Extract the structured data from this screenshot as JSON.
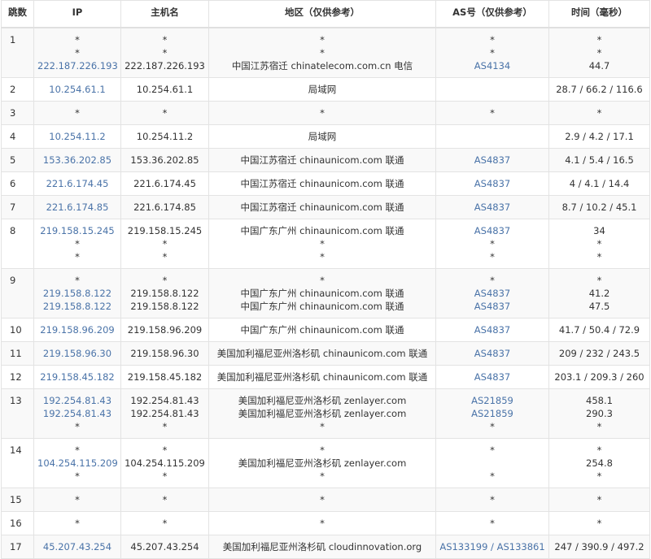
{
  "colors": {
    "link": "#4a73a8",
    "text": "#333333",
    "stripe": "#f9f9f9"
  },
  "headers": [
    "跳数",
    "IP",
    "主机名",
    "地区（仅供参考）",
    "AS号（仅供参考）",
    "时间（毫秒）"
  ],
  "rows": [
    {
      "hop": "1",
      "ip": [
        "*",
        "*",
        "222.187.226.193"
      ],
      "host": [
        "*",
        "*",
        "222.187.226.193"
      ],
      "region": [
        "*",
        "*",
        "中国江苏宿迁 chinatelecom.com.cn 电信"
      ],
      "as": [
        "*",
        "*",
        "AS4134"
      ],
      "time": [
        "*",
        "*",
        "44.7"
      ]
    },
    {
      "hop": "2",
      "ip": [
        "10.254.61.1"
      ],
      "host": [
        "10.254.61.1"
      ],
      "region": [
        "局域网"
      ],
      "as": [
        ""
      ],
      "time": [
        "28.7 / 66.2 / 116.6"
      ]
    },
    {
      "hop": "3",
      "ip": [
        "*"
      ],
      "host": [
        "*"
      ],
      "region": [
        "*"
      ],
      "as": [
        "*"
      ],
      "time": [
        "*"
      ]
    },
    {
      "hop": "4",
      "ip": [
        "10.254.11.2"
      ],
      "host": [
        "10.254.11.2"
      ],
      "region": [
        "局域网"
      ],
      "as": [
        ""
      ],
      "time": [
        "2.9 / 4.2 / 17.1"
      ]
    },
    {
      "hop": "5",
      "ip": [
        "153.36.202.85"
      ],
      "host": [
        "153.36.202.85"
      ],
      "region": [
        "中国江苏宿迁 chinaunicom.com 联通"
      ],
      "as": [
        "AS4837"
      ],
      "time": [
        "4.1 / 5.4 / 16.5"
      ]
    },
    {
      "hop": "6",
      "ip": [
        "221.6.174.45"
      ],
      "host": [
        "221.6.174.45"
      ],
      "region": [
        "中国江苏宿迁 chinaunicom.com 联通"
      ],
      "as": [
        "AS4837"
      ],
      "time": [
        "4 / 4.1 / 14.4"
      ]
    },
    {
      "hop": "7",
      "ip": [
        "221.6.174.85"
      ],
      "host": [
        "221.6.174.85"
      ],
      "region": [
        "中国江苏宿迁 chinaunicom.com 联通"
      ],
      "as": [
        "AS4837"
      ],
      "time": [
        "8.7 / 10.2 / 45.1"
      ]
    },
    {
      "hop": "8",
      "ip": [
        "219.158.15.245",
        "*",
        "*"
      ],
      "host": [
        "219.158.15.245",
        "*",
        "*"
      ],
      "region": [
        "中国广东广州 chinaunicom.com 联通",
        "*",
        "*"
      ],
      "as": [
        "AS4837",
        "*",
        "*"
      ],
      "time": [
        "34",
        "*",
        "*"
      ]
    },
    {
      "hop": "9",
      "ip": [
        "*",
        "219.158.8.122",
        "219.158.8.122"
      ],
      "host": [
        "*",
        "219.158.8.122",
        "219.158.8.122"
      ],
      "region": [
        "*",
        "中国广东广州 chinaunicom.com 联通",
        "中国广东广州 chinaunicom.com 联通"
      ],
      "as": [
        "*",
        "AS4837",
        "AS4837"
      ],
      "time": [
        "*",
        "41.2",
        "47.5"
      ]
    },
    {
      "hop": "10",
      "ip": [
        "219.158.96.209"
      ],
      "host": [
        "219.158.96.209"
      ],
      "region": [
        "中国广东广州 chinaunicom.com 联通"
      ],
      "as": [
        "AS4837"
      ],
      "time": [
        "41.7 / 50.4 / 72.9"
      ]
    },
    {
      "hop": "11",
      "ip": [
        "219.158.96.30"
      ],
      "host": [
        "219.158.96.30"
      ],
      "region": [
        "美国加利福尼亚州洛杉矶 chinaunicom.com 联通"
      ],
      "as": [
        "AS4837"
      ],
      "time": [
        "209 / 232 / 243.5"
      ]
    },
    {
      "hop": "12",
      "ip": [
        "219.158.45.182"
      ],
      "host": [
        "219.158.45.182"
      ],
      "region": [
        "美国加利福尼亚州洛杉矶 chinaunicom.com 联通"
      ],
      "as": [
        "AS4837"
      ],
      "time": [
        "203.1 / 209.3 / 260"
      ]
    },
    {
      "hop": "13",
      "ip": [
        "192.254.81.43",
        "192.254.81.43",
        "*"
      ],
      "host": [
        "192.254.81.43",
        "192.254.81.43",
        "*"
      ],
      "region": [
        "美国加利福尼亚州洛杉矶 zenlayer.com",
        "美国加利福尼亚州洛杉矶 zenlayer.com",
        "*"
      ],
      "as": [
        "AS21859",
        "AS21859",
        "*"
      ],
      "time": [
        "458.1",
        "290.3",
        "*"
      ]
    },
    {
      "hop": "14",
      "ip": [
        "*",
        "104.254.115.209",
        "*"
      ],
      "host": [
        "*",
        "104.254.115.209",
        "*"
      ],
      "region": [
        "*",
        "美国加利福尼亚州洛杉矶 zenlayer.com",
        "*"
      ],
      "as": [
        "*",
        "",
        "*"
      ],
      "time": [
        "*",
        "254.8",
        "*"
      ]
    },
    {
      "hop": "15",
      "ip": [
        "*"
      ],
      "host": [
        "*"
      ],
      "region": [
        "*"
      ],
      "as": [
        "*"
      ],
      "time": [
        "*"
      ]
    },
    {
      "hop": "16",
      "ip": [
        "*"
      ],
      "host": [
        "*"
      ],
      "region": [
        "*"
      ],
      "as": [
        "*"
      ],
      "time": [
        "*"
      ]
    },
    {
      "hop": "17",
      "ip": [
        "45.207.43.254"
      ],
      "host": [
        "45.207.43.254"
      ],
      "region": [
        "美国加利福尼亚州洛杉矶 cloudinnovation.org"
      ],
      "as": [
        "AS133199 / AS133861"
      ],
      "time": [
        "247 / 390.9 / 497.2"
      ]
    }
  ]
}
